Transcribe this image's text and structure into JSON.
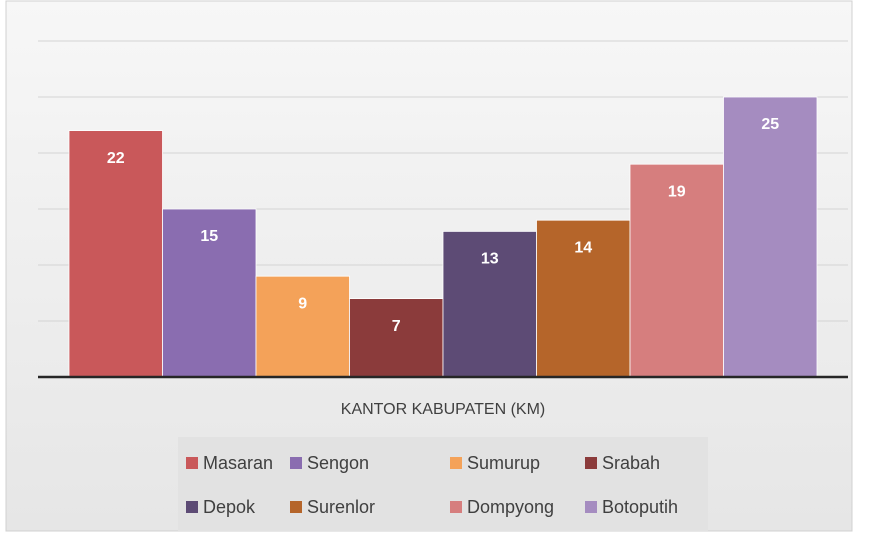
{
  "chart_data": {
    "type": "bar",
    "categories": [
      "KANTOR KABUPATEN (KM)"
    ],
    "series": [
      {
        "name": "Masaran",
        "color": "#c9585a",
        "values": [
          22
        ]
      },
      {
        "name": "Sengon",
        "color": "#8a6db0",
        "values": [
          15
        ]
      },
      {
        "name": "Sumurup",
        "color": "#f4a259",
        "values": [
          9
        ]
      },
      {
        "name": "Srabah",
        "color": "#8b3b3b",
        "values": [
          7
        ]
      },
      {
        "name": "Depok",
        "color": "#5d4b75",
        "values": [
          13
        ]
      },
      {
        "name": "Surenlor",
        "color": "#b5652a",
        "values": [
          14
        ]
      },
      {
        "name": "Dompyong",
        "color": "#d67e7e",
        "values": [
          19
        ]
      },
      {
        "name": "Botoputih",
        "color": "#a58cc0",
        "values": [
          25
        ]
      }
    ],
    "ylim": [
      0,
      30
    ],
    "yticks": [
      0,
      5,
      10,
      15,
      20,
      25,
      30
    ],
    "grid": true,
    "legend": "bottom"
  }
}
